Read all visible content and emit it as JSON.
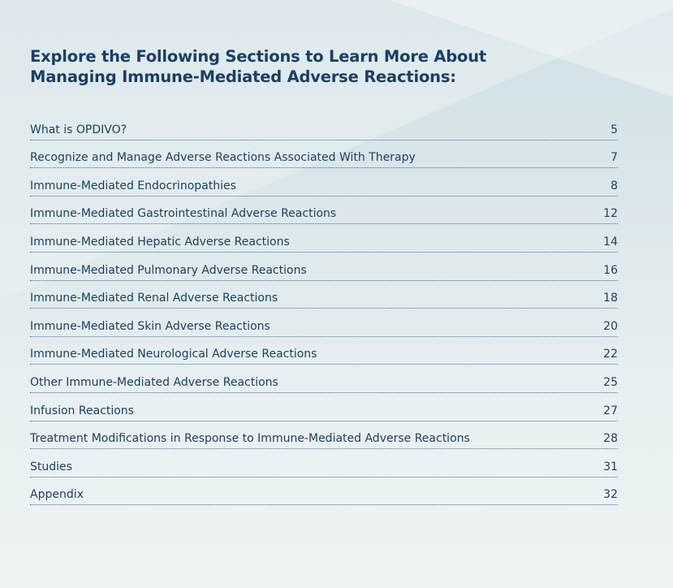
{
  "title": {
    "line1": "Explore the Following Sections to Learn More About",
    "line2": "Managing Immune-Mediated Adverse Reactions:"
  },
  "toc": [
    {
      "label": "What is OPDIVO?",
      "page": "5"
    },
    {
      "label": "Recognize and Manage Adverse Reactions Associated With Therapy",
      "page": "7"
    },
    {
      "label": "Immune-Mediated Endocrinopathies",
      "page": "8"
    },
    {
      "label": "Immune-Mediated Gastrointestinal Adverse Reactions",
      "page": "12"
    },
    {
      "label": "Immune-Mediated Hepatic Adverse Reactions",
      "page": "14"
    },
    {
      "label": "Immune-Mediated Pulmonary Adverse Reactions",
      "page": "16"
    },
    {
      "label": "Immune-Mediated Renal Adverse Reactions",
      "page": "18"
    },
    {
      "label": "Immune-Mediated Skin Adverse Reactions",
      "page": "20"
    },
    {
      "label": "Immune-Mediated Neurological Adverse Reactions",
      "page": "22"
    },
    {
      "label": "Other Immune-Mediated Adverse Reactions",
      "page": "25"
    },
    {
      "label": "Infusion Reactions",
      "page": "27"
    },
    {
      "label": "Treatment Modifications in Response to Immune-Mediated Adverse Reactions",
      "page": "28"
    },
    {
      "label": "Studies",
      "page": "31"
    },
    {
      "label": "Appendix",
      "page": "32"
    }
  ],
  "colors": {
    "heading": "#1a3f66",
    "text": "#1d3f63",
    "dots": "#4b6a85"
  }
}
